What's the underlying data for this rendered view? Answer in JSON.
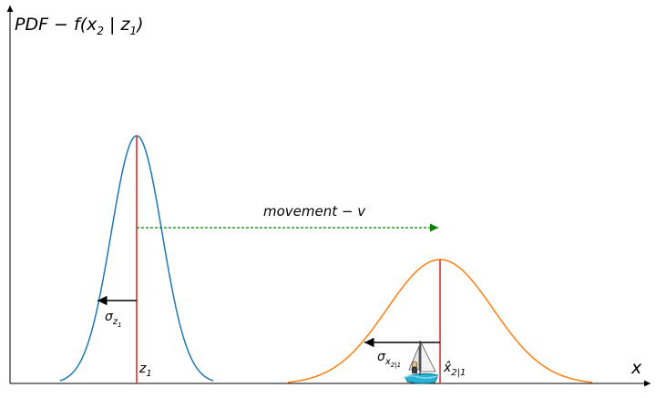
{
  "y_axis_label": {
    "main": "PDF − f(x",
    "sub1": "2",
    "mid": " | z",
    "sub2": "1",
    "end": ")"
  },
  "x_axis_label": "x",
  "movement_label": "movement − v",
  "curve_left": {
    "color": "#1f77b4",
    "mean_marker_color": "#e02020",
    "mean_label": {
      "base": "z",
      "sub": "1"
    },
    "sigma_label": {
      "base": "σ",
      "sub": "z",
      "subsub": "1"
    }
  },
  "curve_right": {
    "color": "#ff7f0e",
    "mean_marker_color": "#e02020",
    "mean_label": {
      "base": "x̂",
      "sub": "2|1"
    },
    "sigma_label": {
      "base": "σ",
      "sub": "x",
      "subsub": "2|1"
    }
  },
  "arrow_color": "#000000",
  "movement_color": "#008000",
  "boat_icon": "sailboat-icon"
}
